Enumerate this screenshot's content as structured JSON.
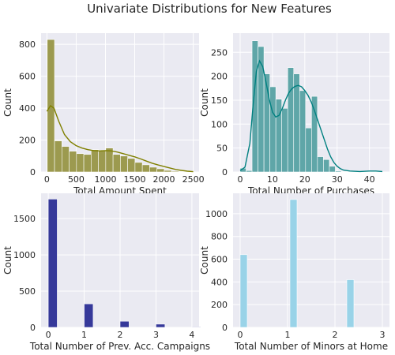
{
  "figure": {
    "title": "Univariate Distributions for New Features"
  },
  "chart_data": [
    {
      "type": "histogram",
      "xlabel": "Total Amount Spent",
      "ylabel": "Count",
      "xlim": [
        -100,
        2600
      ],
      "ylim": [
        0,
        870
      ],
      "xticks": [
        0,
        500,
        1000,
        1500,
        2000,
        2500
      ],
      "yticks": [
        0,
        200,
        400,
        600,
        800
      ],
      "bar_color": "#9c9a4f",
      "line_color": "#808000",
      "bin_start": 5,
      "bin_width": 125,
      "values": [
        830,
        195,
        160,
        130,
        115,
        110,
        140,
        135,
        150,
        110,
        100,
        85,
        60,
        45,
        30,
        20,
        10,
        5,
        3,
        2
      ],
      "kde": [
        [
          0,
          380
        ],
        [
          60,
          415
        ],
        [
          120,
          400
        ],
        [
          200,
          320
        ],
        [
          300,
          235
        ],
        [
          400,
          190
        ],
        [
          500,
          165
        ],
        [
          600,
          150
        ],
        [
          700,
          140
        ],
        [
          800,
          134
        ],
        [
          900,
          132
        ],
        [
          1000,
          134
        ],
        [
          1100,
          132
        ],
        [
          1200,
          125
        ],
        [
          1300,
          115
        ],
        [
          1400,
          105
        ],
        [
          1500,
          95
        ],
        [
          1600,
          82
        ],
        [
          1700,
          68
        ],
        [
          1800,
          55
        ],
        [
          1900,
          44
        ],
        [
          2000,
          34
        ],
        [
          2100,
          25
        ],
        [
          2200,
          16
        ],
        [
          2300,
          10
        ],
        [
          2400,
          5
        ],
        [
          2500,
          2
        ]
      ]
    },
    {
      "type": "histogram",
      "xlabel": "Total Number of Purchases",
      "ylabel": "Count",
      "xlim": [
        -2.2,
        46.2
      ],
      "ylim": [
        0,
        290
      ],
      "xticks": [
        0,
        10,
        20,
        30,
        40
      ],
      "yticks": [
        0,
        50,
        100,
        150,
        200,
        250
      ],
      "bar_color": "#5fa6a8",
      "line_color": "#008080",
      "bin_start": 0,
      "bin_width": 1.84,
      "values": [
        8,
        3,
        274,
        262,
        205,
        178,
        152,
        133,
        218,
        205,
        170,
        92,
        158,
        32,
        26,
        12,
        2,
        1,
        0,
        0,
        0,
        0,
        1,
        1
      ],
      "kde": [
        [
          0,
          3
        ],
        [
          1.5,
          10
        ],
        [
          3,
          60
        ],
        [
          4,
          140
        ],
        [
          5,
          210
        ],
        [
          6,
          232
        ],
        [
          7,
          220
        ],
        [
          8,
          188
        ],
        [
          9,
          152
        ],
        [
          10,
          125
        ],
        [
          11,
          115
        ],
        [
          12,
          118
        ],
        [
          13,
          132
        ],
        [
          14,
          150
        ],
        [
          15,
          165
        ],
        [
          16,
          174
        ],
        [
          17,
          179
        ],
        [
          18,
          181
        ],
        [
          19,
          178
        ],
        [
          20,
          170
        ],
        [
          21,
          160
        ],
        [
          22,
          146
        ],
        [
          23,
          128
        ],
        [
          24,
          108
        ],
        [
          25,
          88
        ],
        [
          26,
          68
        ],
        [
          27,
          48
        ],
        [
          28,
          32
        ],
        [
          29,
          20
        ],
        [
          30,
          12
        ],
        [
          31,
          7
        ],
        [
          32,
          4
        ],
        [
          34,
          2
        ],
        [
          37,
          1
        ],
        [
          40,
          2
        ],
        [
          42,
          2
        ],
        [
          44,
          1
        ]
      ]
    },
    {
      "type": "histogram",
      "xlabel": "Total Number of Prev. Acc. Campaigns",
      "ylabel": "Count",
      "xlim": [
        -0.2,
        4.2
      ],
      "ylim": [
        0,
        1850
      ],
      "xticks": [
        0,
        1,
        2,
        3,
        4
      ],
      "yticks": [
        0,
        500,
        1000,
        1500
      ],
      "bar_color": "#36399a",
      "line_color": "",
      "bin_start": 0,
      "bin_width": 0.25,
      "values": [
        1770,
        0,
        0,
        0,
        325,
        0,
        0,
        0,
        85,
        0,
        0,
        0,
        45,
        0,
        0,
        0,
        8
      ],
      "kde": []
    },
    {
      "type": "histogram",
      "xlabel": "Total Number of Minors at Home",
      "ylabel": "Count",
      "xlim": [
        -0.15,
        3.15
      ],
      "ylim": [
        0,
        1180
      ],
      "xticks": [
        0,
        1,
        2,
        3
      ],
      "yticks": [
        0,
        200,
        400,
        600,
        800,
        1000
      ],
      "bar_color": "#99d3e8",
      "line_color": "",
      "bin_start": 0,
      "bin_width": 0.15,
      "values": [
        640,
        0,
        0,
        0,
        0,
        0,
        0,
        1125,
        0,
        0,
        0,
        0,
        0,
        0,
        0,
        420,
        0,
        0,
        0,
        0,
        0,
        0,
        0,
        55
      ],
      "bar_lefts": [
        0,
        1,
        2,
        2.85
      ],
      "kde": []
    }
  ]
}
